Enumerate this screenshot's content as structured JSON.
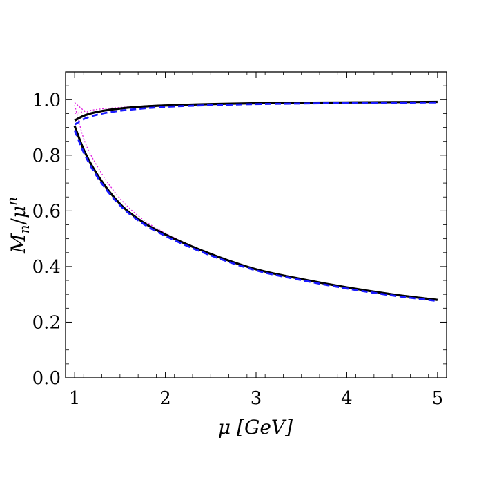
{
  "chart_data": {
    "type": "line",
    "xlabel": "μ [GeV]",
    "ylabel": "M_n/μ^n",
    "ylabel_parts": {
      "main": "M",
      "sub": "n",
      "slash": "/",
      "mu": "μ",
      "sup": "n"
    },
    "xlim": [
      0.9,
      5.1
    ],
    "ylim": [
      0.0,
      1.1
    ],
    "x_ticks": [
      1,
      2,
      3,
      4,
      5
    ],
    "x_tick_labels": [
      "1",
      "2",
      "3",
      "4",
      "5"
    ],
    "y_ticks": [
      0.0,
      0.2,
      0.4,
      0.6,
      0.8,
      1.0
    ],
    "y_tick_labels": [
      "0.0",
      "0.2",
      "0.4",
      "0.6",
      "0.8",
      "1.0"
    ],
    "grid": false,
    "legend": "none",
    "series": [
      {
        "style": "solid",
        "color": "#000000",
        "x": [
          1.0,
          1.1,
          1.25,
          1.5,
          1.75,
          2.0,
          2.5,
          3.0,
          3.5,
          4.0,
          4.5,
          5.0
        ],
        "y": [
          0.925,
          0.942,
          0.956,
          0.968,
          0.975,
          0.979,
          0.984,
          0.987,
          0.989,
          0.99,
          0.991,
          0.992
        ]
      },
      {
        "style": "dashed",
        "color": "#1a1aff",
        "x": [
          1.0,
          1.1,
          1.25,
          1.5,
          1.75,
          2.0,
          2.5,
          3.0,
          3.5,
          4.0,
          4.5,
          5.0
        ],
        "y": [
          0.91,
          0.93,
          0.946,
          0.96,
          0.968,
          0.974,
          0.98,
          0.984,
          0.986,
          0.988,
          0.989,
          0.99
        ]
      },
      {
        "style": "dotted",
        "color": "#e020e0",
        "x": [
          1.0,
          1.05,
          1.1,
          1.25,
          1.5,
          2.0,
          3.0,
          4.0,
          5.0
        ],
        "y": [
          0.95,
          0.953,
          0.957,
          0.965,
          0.972,
          0.98,
          0.986,
          0.989,
          0.99
        ]
      },
      {
        "style": "dotted",
        "color": "#e020e0",
        "x": [
          1.0,
          1.05,
          1.1,
          1.2,
          1.3
        ],
        "y": [
          0.99,
          0.975,
          0.962,
          0.952,
          0.955
        ]
      },
      {
        "style": "solid",
        "color": "#000000",
        "x": [
          1.0,
          1.1,
          1.25,
          1.5,
          1.75,
          2.0,
          2.5,
          3.0,
          3.5,
          4.0,
          4.5,
          5.0
        ],
        "y": [
          0.905,
          0.82,
          0.73,
          0.625,
          0.56,
          0.515,
          0.445,
          0.39,
          0.355,
          0.325,
          0.3,
          0.28
        ]
      },
      {
        "style": "dashed",
        "color": "#1a1aff",
        "x": [
          1.0,
          1.1,
          1.25,
          1.5,
          1.75,
          2.0,
          2.5,
          3.0,
          3.5,
          4.0,
          4.5,
          5.0
        ],
        "y": [
          0.89,
          0.81,
          0.722,
          0.62,
          0.555,
          0.51,
          0.44,
          0.386,
          0.351,
          0.321,
          0.296,
          0.276
        ]
      },
      {
        "style": "dotted",
        "color": "#e020e0",
        "x": [
          1.0,
          1.1,
          1.25,
          1.5,
          1.75,
          2.0,
          2.5,
          3.0,
          3.5,
          4.0,
          4.5,
          5.0
        ],
        "y": [
          0.98,
          0.86,
          0.76,
          0.645,
          0.57,
          0.52,
          0.447,
          0.391,
          0.355,
          0.324,
          0.299,
          0.279
        ]
      }
    ]
  }
}
